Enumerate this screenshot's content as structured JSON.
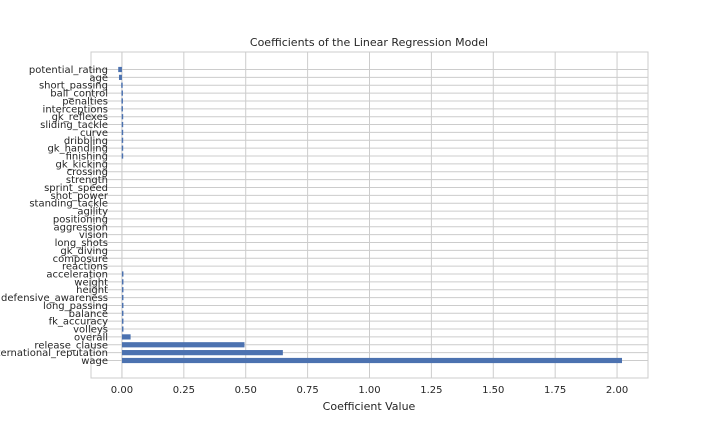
{
  "chart_data": {
    "type": "bar",
    "orientation": "horizontal",
    "title": "Coefficients of the Linear Regression Model",
    "xlabel": "Coefficient Value",
    "ylabel": "",
    "xlim": [
      -0.125,
      2.125
    ],
    "xticks": [
      "0.00",
      "0.25",
      "0.50",
      "0.75",
      "1.00",
      "1.25",
      "1.50",
      "1.75",
      "2.00"
    ],
    "grid": true,
    "bar_color": "#4c72b0",
    "categories": [
      "potential_rating",
      "age",
      "short_passing",
      "ball_control",
      "penalties",
      "interceptions",
      "gk_reflexes",
      "sliding_tackle",
      "curve",
      "dribbling",
      "gk_handling",
      "finishing",
      "gk_kicking",
      "crossing",
      "strength",
      "sprint_speed",
      "shot_power",
      "standing_tackle",
      "agility",
      "positioning",
      "aggression",
      "vision",
      "long_shots",
      "gk_diving",
      "composure",
      "reactions",
      "acceleration",
      "weight",
      "height",
      "defensive_awareness",
      "long_passing",
      "balance",
      "fk_accuracy",
      "volleys",
      "overall",
      "release_clause",
      "international_reputation",
      "wage"
    ],
    "values": [
      -0.015,
      -0.012,
      -0.003,
      -0.002,
      -0.002,
      -0.002,
      -0.001,
      -0.001,
      -0.001,
      -0.001,
      -0.001,
      -0.001,
      0.0,
      0.0,
      0.0,
      0.0,
      0.0,
      0.0,
      0.0,
      0.0,
      0.0,
      0.0,
      0.0,
      0.0,
      0.0,
      0.0,
      0.001,
      0.001,
      0.001,
      0.001,
      0.001,
      0.001,
      0.002,
      0.002,
      0.035,
      0.495,
      0.65,
      2.02
    ]
  }
}
